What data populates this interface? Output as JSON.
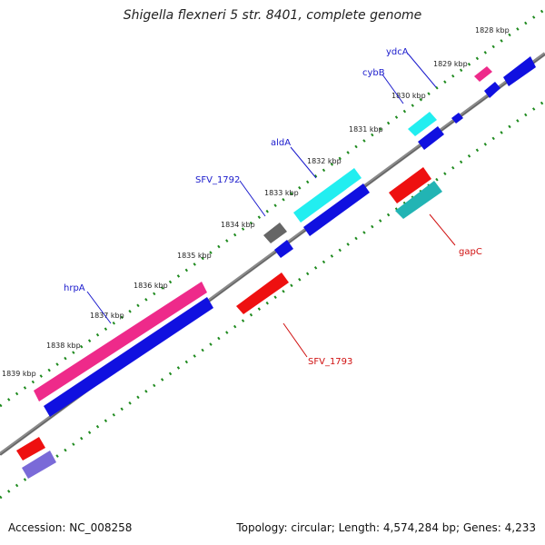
{
  "title": "Shigella flexneri 5 str. 8401, complete genome",
  "footer": {
    "accession_label": "Accession: NC_008258",
    "stats_label": "Topology: circular; Length: 4,574,284 bp; Genes: 4,233"
  },
  "kbp_ticks": [
    {
      "label": "1828 kbp"
    },
    {
      "label": "1829 kbp"
    },
    {
      "label": "1830 kbp"
    },
    {
      "label": "1831 kbp"
    },
    {
      "label": "1832 kbp"
    },
    {
      "label": "1833 kbp"
    },
    {
      "label": "1834 kbp"
    },
    {
      "label": "1835 kbp"
    },
    {
      "label": "1836 kbp"
    },
    {
      "label": "1837 kbp"
    },
    {
      "label": "1838 kbp"
    },
    {
      "label": "1839 kbp"
    }
  ],
  "gene_labels": [
    {
      "name": "ydcA",
      "strand": "forward"
    },
    {
      "name": "cybB",
      "strand": "forward"
    },
    {
      "name": "aldA",
      "strand": "forward"
    },
    {
      "name": "SFV_1792",
      "strand": "forward"
    },
    {
      "name": "hrpA",
      "strand": "forward"
    },
    {
      "name": "gapC",
      "strand": "reverse"
    },
    {
      "name": "SFV_1793",
      "strand": "reverse"
    }
  ],
  "colors": {
    "backbone": "#8a8a8a",
    "tick": "#1e8a1e",
    "gene_cds": "#1010e0",
    "gene_pink": "#ee2a8a",
    "gene_cyan": "#22eef0",
    "gene_red": "#ee1010",
    "gene_gray": "#666666",
    "gene_teal": "#22b4b4",
    "gene_purple": "#7a6ad8"
  }
}
